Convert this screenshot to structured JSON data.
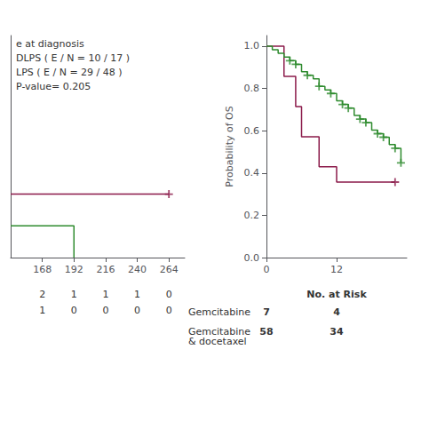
{
  "chart_data": [
    {
      "type": "step",
      "annotations": [
        "e at diagnosis",
        "DLPS ( E / N = 10 / 17 )",
        "LPS ( E / N = 29 / 48 )",
        "P-value= 0.205"
      ],
      "xlim": [
        144,
        276
      ],
      "xticks": [
        168,
        192,
        216,
        240,
        264
      ],
      "ylim": [
        0.0,
        1.05
      ],
      "yticks": [],
      "grid": false,
      "tick_labels": "x",
      "series": [
        {
          "color": "#8B1A4A",
          "x": [
            144,
            264
          ],
          "values": [
            0.3,
            0.3
          ],
          "censored": {
            "marker": "plus",
            "x": [
              264
            ],
            "values": [
              0.3
            ]
          }
        },
        {
          "color": "#2E8B2E",
          "x": [
            144,
            192,
            192
          ],
          "values": [
            0.15,
            0.15,
            0.0
          ]
        }
      ],
      "at_risk": {
        "rows": [
          {
            "values": [
              2,
              1,
              1,
              1,
              0
            ]
          },
          {
            "values": [
              1,
              0,
              0,
              0,
              0
            ]
          }
        ]
      }
    },
    {
      "type": "step",
      "ylabel": "Probability of OS",
      "xlim": [
        0,
        24
      ],
      "xticks": [
        0,
        12
      ],
      "ylim": [
        0.0,
        1.05
      ],
      "yticks": [
        {
          "value": 0,
          "label": "0.0"
        },
        0.2,
        0.4,
        0.6,
        0.8,
        {
          "value": 1,
          "label": "1.0"
        }
      ],
      "grid": false,
      "series": [
        {
          "color": "#8B1A4A",
          "x": [
            0,
            3,
            3,
            5,
            5,
            6,
            6,
            9,
            9,
            12,
            12,
            22
          ],
          "values": [
            1.0,
            1.0,
            0.857,
            0.857,
            0.714,
            0.714,
            0.571,
            0.571,
            0.429,
            0.429,
            0.357,
            0.357
          ],
          "censored": {
            "marker": "plus",
            "x": [
              22
            ],
            "values": [
              0.357
            ]
          }
        },
        {
          "color": "#2E8B2E",
          "x": [
            0,
            1,
            1,
            2,
            2,
            3,
            3,
            4,
            4,
            5,
            5,
            6,
            6,
            7,
            7,
            8,
            8,
            9,
            9,
            10,
            10,
            11,
            11,
            12,
            12,
            13,
            13,
            14,
            14,
            15,
            15,
            16,
            16,
            17,
            17,
            18,
            18,
            19,
            19,
            20,
            20,
            21,
            21,
            22,
            22,
            23,
            23
          ],
          "values": [
            1.0,
            1.0,
            0.983,
            0.983,
            0.966,
            0.966,
            0.948,
            0.948,
            0.931,
            0.931,
            0.914,
            0.914,
            0.879,
            0.879,
            0.862,
            0.862,
            0.845,
            0.845,
            0.81,
            0.81,
            0.793,
            0.793,
            0.776,
            0.776,
            0.741,
            0.741,
            0.724,
            0.724,
            0.707,
            0.707,
            0.672,
            0.672,
            0.655,
            0.655,
            0.638,
            0.638,
            0.603,
            0.603,
            0.586,
            0.586,
            0.569,
            0.569,
            0.534,
            0.534,
            0.517,
            0.517,
            0.448
          ],
          "censored": {
            "marker": "plus",
            "x": [
              4,
              5,
              7,
              9,
              11,
              13,
              14,
              16,
              17,
              19,
              20,
              22,
              23
            ],
            "values": [
              0.931,
              0.914,
              0.862,
              0.81,
              0.776,
              0.724,
              0.707,
              0.655,
              0.638,
              0.586,
              0.569,
              0.517,
              0.448
            ]
          }
        }
      ],
      "at_risk": {
        "title": "No. at Risk",
        "rows": [
          {
            "label": "Gemcitabine",
            "values": [
              7,
              4
            ]
          },
          {
            "label": "Gemcitabine\n& docetaxel",
            "values": [
              58,
              34
            ]
          }
        ]
      }
    }
  ]
}
